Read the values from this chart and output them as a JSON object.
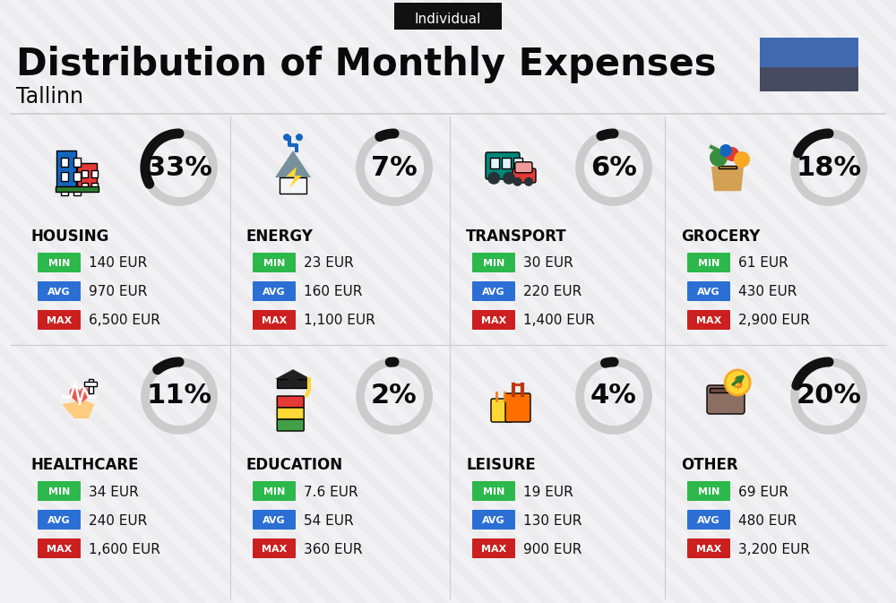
{
  "title": "Distribution of Monthly Expenses",
  "subtitle": "Tallinn",
  "badge": "Individual",
  "bg_color": "#f2f2f4",
  "categories": [
    {
      "name": "HOUSING",
      "pct": 33,
      "min": "140 EUR",
      "avg": "970 EUR",
      "max": "6,500 EUR",
      "icon": "housing",
      "row": 0,
      "col": 0
    },
    {
      "name": "ENERGY",
      "pct": 7,
      "min": "23 EUR",
      "avg": "160 EUR",
      "max": "1,100 EUR",
      "icon": "energy",
      "row": 0,
      "col": 1
    },
    {
      "name": "TRANSPORT",
      "pct": 6,
      "min": "30 EUR",
      "avg": "220 EUR",
      "max": "1,400 EUR",
      "icon": "transport",
      "row": 0,
      "col": 2
    },
    {
      "name": "GROCERY",
      "pct": 18,
      "min": "61 EUR",
      "avg": "430 EUR",
      "max": "2,900 EUR",
      "icon": "grocery",
      "row": 0,
      "col": 3
    },
    {
      "name": "HEALTHCARE",
      "pct": 11,
      "min": "34 EUR",
      "avg": "240 EUR",
      "max": "1,600 EUR",
      "icon": "healthcare",
      "row": 1,
      "col": 0
    },
    {
      "name": "EDUCATION",
      "pct": 2,
      "min": "7.6 EUR",
      "avg": "54 EUR",
      "max": "360 EUR",
      "icon": "education",
      "row": 1,
      "col": 1
    },
    {
      "name": "LEISURE",
      "pct": 4,
      "min": "19 EUR",
      "avg": "130 EUR",
      "max": "900 EUR",
      "icon": "leisure",
      "row": 1,
      "col": 2
    },
    {
      "name": "OTHER",
      "pct": 20,
      "min": "69 EUR",
      "avg": "480 EUR",
      "max": "3,200 EUR",
      "icon": "other",
      "row": 1,
      "col": 3
    }
  ],
  "color_min": "#2cb84b",
  "color_avg": "#2b6fd4",
  "color_max": "#cc1f1f",
  "donut_filled": "#111111",
  "donut_empty": "#cccccc",
  "flag_blue": "#4169b0",
  "flag_dark": "#464b62",
  "title_fontsize": 30,
  "subtitle_fontsize": 17,
  "cat_fontsize": 12,
  "val_fontsize": 11,
  "pct_fontsize": 22
}
